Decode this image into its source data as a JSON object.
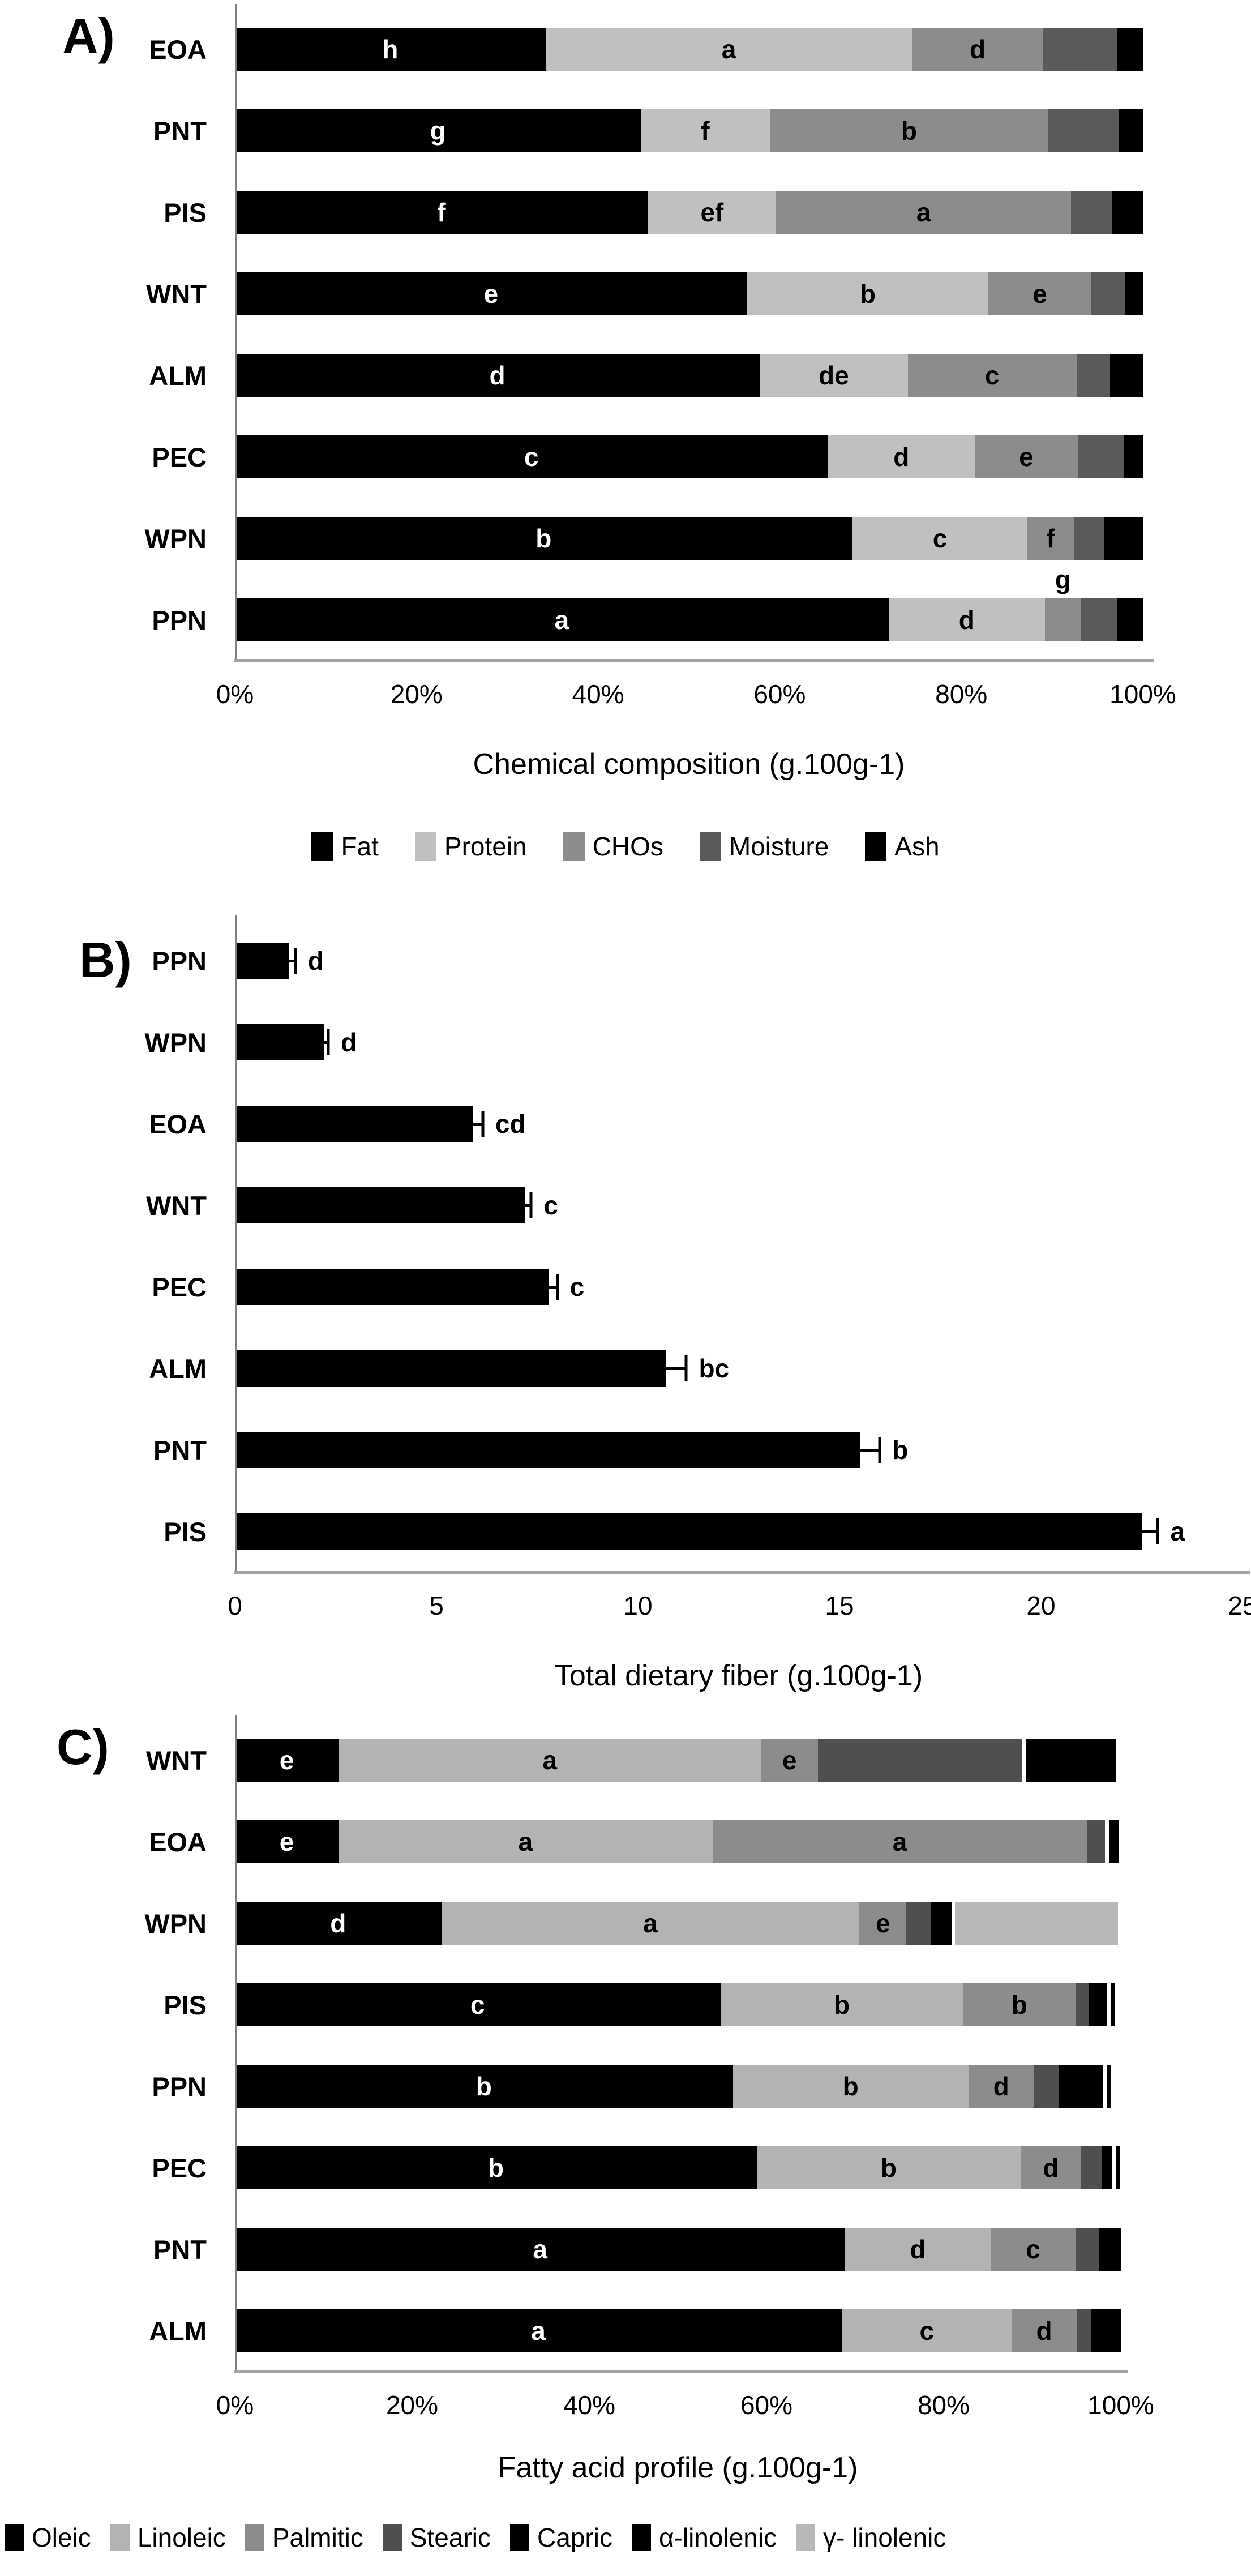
{
  "chart_data": [
    {
      "id": "A",
      "panel_label": "A)",
      "type": "stacked_bar_h",
      "xlabel": "Chemical composition (g.100g-1)",
      "xlim": [
        0,
        100
      ],
      "xticks": [
        "0%",
        "20%",
        "40%",
        "60%",
        "80%",
        "100%"
      ],
      "axis_color": "#a3a3a3",
      "legend_position": "bottom-center",
      "series": [
        {
          "name": "Fat",
          "color": "#000000"
        },
        {
          "name": "Protein",
          "color": "#c0c0c0"
        },
        {
          "name": "CHOs",
          "color": "#8c8c8c"
        },
        {
          "name": "Moisture",
          "color": "#5a5a5a"
        },
        {
          "name": "Ash",
          "color": "#000000"
        }
      ],
      "rows": [
        {
          "category": "EOA",
          "values": [
            34.2,
            40.4,
            14.4,
            8.2,
            2.8
          ],
          "letters": [
            {
              "seg": 0,
              "text": "h",
              "color": "#ffffff"
            },
            {
              "seg": 1,
              "text": "a",
              "color": "#000000"
            },
            {
              "seg": 2,
              "text": "d",
              "color": "#000000"
            }
          ]
        },
        {
          "category": "PNT",
          "values": [
            44.7,
            14.2,
            30.7,
            7.7,
            2.7
          ],
          "letters": [
            {
              "seg": 0,
              "text": "g",
              "color": "#ffffff"
            },
            {
              "seg": 1,
              "text": "f",
              "color": "#000000"
            },
            {
              "seg": 2,
              "text": "b",
              "color": "#000000"
            }
          ]
        },
        {
          "category": "PIS",
          "values": [
            45.5,
            14.1,
            32.5,
            4.5,
            3.4
          ],
          "letters": [
            {
              "seg": 0,
              "text": "f",
              "color": "#ffffff"
            },
            {
              "seg": 1,
              "text": "ef",
              "color": "#000000"
            },
            {
              "seg": 2,
              "text": "a",
              "color": "#000000"
            }
          ]
        },
        {
          "category": "WNT",
          "values": [
            56.4,
            26.6,
            11.3,
            3.7,
            2.0
          ],
          "letters": [
            {
              "seg": 0,
              "text": "e",
              "color": "#ffffff"
            },
            {
              "seg": 1,
              "text": "b",
              "color": "#000000"
            },
            {
              "seg": 2,
              "text": "e",
              "color": "#000000"
            }
          ]
        },
        {
          "category": "ALM",
          "values": [
            57.8,
            16.3,
            18.6,
            3.7,
            3.6
          ],
          "letters": [
            {
              "seg": 0,
              "text": "d",
              "color": "#ffffff"
            },
            {
              "seg": 1,
              "text": "de",
              "color": "#000000"
            },
            {
              "seg": 2,
              "text": "c",
              "color": "#000000"
            }
          ]
        },
        {
          "category": "PEC",
          "values": [
            65.3,
            16.2,
            11.3,
            5.1,
            2.1
          ],
          "letters": [
            {
              "seg": 0,
              "text": "c",
              "color": "#ffffff"
            },
            {
              "seg": 1,
              "text": "d",
              "color": "#000000"
            },
            {
              "seg": 2,
              "text": "e",
              "color": "#000000"
            }
          ]
        },
        {
          "category": "WPN",
          "values": [
            68.0,
            19.3,
            5.1,
            3.3,
            4.3
          ],
          "letters": [
            {
              "seg": 0,
              "text": "b",
              "color": "#ffffff"
            },
            {
              "seg": 1,
              "text": "c",
              "color": "#000000"
            },
            {
              "seg": 2,
              "text": "f",
              "color": "#000000"
            }
          ]
        },
        {
          "category": "PPN",
          "values": [
            72.0,
            17.2,
            4.0,
            4.0,
            2.8
          ],
          "letters": [
            {
              "seg": 0,
              "text": "a",
              "color": "#ffffff"
            },
            {
              "seg": 1,
              "text": "d",
              "color": "#000000"
            },
            {
              "seg": 2,
              "text": "g",
              "color": "#000000",
              "pos": "above"
            }
          ]
        }
      ]
    },
    {
      "id": "B",
      "panel_label": "B)",
      "type": "bar_h",
      "xlabel": "Total dietary fiber (g.100g-1)",
      "xlim": [
        0,
        25
      ],
      "xticks": [
        "0",
        "5",
        "10",
        "15",
        "20",
        "25"
      ],
      "axis_color": "#a3a3a3",
      "bar_color": "#000000",
      "rows": [
        {
          "category": "PPN",
          "value": 1.35,
          "error": 0.15,
          "letter": "d"
        },
        {
          "category": "WPN",
          "value": 2.2,
          "error": 0.12,
          "letter": "d"
        },
        {
          "category": "EOA",
          "value": 5.9,
          "error": 0.25,
          "letter": "cd"
        },
        {
          "category": "WNT",
          "value": 7.2,
          "error": 0.15,
          "letter": "c"
        },
        {
          "category": "PEC",
          "value": 7.8,
          "error": 0.2,
          "letter": "c"
        },
        {
          "category": "ALM",
          "value": 10.7,
          "error": 0.5,
          "letter": "bc"
        },
        {
          "category": "PNT",
          "value": 15.5,
          "error": 0.5,
          "letter": "b"
        },
        {
          "category": "PIS",
          "value": 22.5,
          "error": 0.4,
          "letter": "a"
        }
      ]
    },
    {
      "id": "C",
      "panel_label": "C)",
      "type": "stacked_bar_h",
      "xlabel": "Fatty acid profile (g.100g-1)",
      "xlim": [
        0,
        100
      ],
      "xticks": [
        "0%",
        "20%",
        "40%",
        "60%",
        "80%",
        "100%"
      ],
      "axis_color": "#a3a3a3",
      "legend_position": "bottom-left",
      "series": [
        {
          "name": "Oleic",
          "color": "#000000"
        },
        {
          "name": "Linoleic",
          "color": "#b3b3b3"
        },
        {
          "name": "Palmitic",
          "color": "#8c8c8c"
        },
        {
          "name": "Stearic",
          "color": "#4f4f4f"
        },
        {
          "name": "Capric",
          "color": "#000000"
        },
        {
          "name": "α-linolenic",
          "color": "#000000"
        },
        {
          "name": "γ- linolenic",
          "color": "#b8b8b8"
        }
      ],
      "rows": [
        {
          "category": "WNT",
          "values": [
            11.7,
            47.7,
            6.4,
            23.0,
            0,
            10.2,
            0
          ],
          "gaps": [
            {
              "before": 5,
              "w": 0.5
            }
          ],
          "letters": [
            {
              "seg": 0,
              "text": "e",
              "color": "#ffffff"
            },
            {
              "seg": 1,
              "text": "a",
              "color": "#000000"
            },
            {
              "seg": 2,
              "text": "e",
              "color": "#000000"
            }
          ]
        },
        {
          "category": "EOA",
          "values": [
            11.7,
            42.2,
            42.3,
            2.0,
            0,
            1.1,
            0
          ],
          "gaps": [
            {
              "before": 5,
              "w": 0.5
            }
          ],
          "letters": [
            {
              "seg": 0,
              "text": "e",
              "color": "#ffffff"
            },
            {
              "seg": 1,
              "text": "a",
              "color": "#000000"
            },
            {
              "seg": 2,
              "text": "a",
              "color": "#000000"
            }
          ]
        },
        {
          "category": "WPN",
          "values": [
            23.3,
            47.2,
            5.3,
            2.7,
            0,
            2.4,
            18.4
          ],
          "gaps": [
            {
              "before": 6,
              "w": 0.4
            }
          ],
          "letters": [
            {
              "seg": 0,
              "text": "d",
              "color": "#ffffff"
            },
            {
              "seg": 1,
              "text": "a",
              "color": "#000000"
            },
            {
              "seg": 2,
              "text": "e",
              "color": "#000000"
            }
          ]
        },
        {
          "category": "PIS",
          "values": [
            54.8,
            27.4,
            12.7,
            1.5,
            0,
            2.1,
            0
          ],
          "end_tick": true,
          "letters": [
            {
              "seg": 0,
              "text": "c",
              "color": "#ffffff"
            },
            {
              "seg": 1,
              "text": "b",
              "color": "#000000"
            },
            {
              "seg": 2,
              "text": "b",
              "color": "#000000"
            }
          ]
        },
        {
          "category": "PPN",
          "values": [
            56.2,
            26.6,
            7.4,
            2.8,
            0,
            5.0,
            0
          ],
          "end_tick": true,
          "letters": [
            {
              "seg": 0,
              "text": "b",
              "color": "#ffffff"
            },
            {
              "seg": 1,
              "text": "b",
              "color": "#000000"
            },
            {
              "seg": 2,
              "text": "d",
              "color": "#000000"
            }
          ]
        },
        {
          "category": "PEC",
          "values": [
            58.9,
            29.8,
            6.8,
            2.3,
            0,
            1.2,
            0
          ],
          "end_tick": true,
          "letters": [
            {
              "seg": 0,
              "text": "b",
              "color": "#ffffff"
            },
            {
              "seg": 1,
              "text": "b",
              "color": "#000000"
            },
            {
              "seg": 2,
              "text": "d",
              "color": "#000000"
            }
          ]
        },
        {
          "category": "PNT",
          "values": [
            68.9,
            16.4,
            9.6,
            2.7,
            0,
            2.4,
            0
          ],
          "letters": [
            {
              "seg": 0,
              "text": "a",
              "color": "#ffffff"
            },
            {
              "seg": 1,
              "text": "d",
              "color": "#000000"
            },
            {
              "seg": 2,
              "text": "c",
              "color": "#000000"
            }
          ]
        },
        {
          "category": "ALM",
          "values": [
            68.5,
            19.2,
            7.3,
            1.6,
            0,
            3.4,
            0
          ],
          "letters": [
            {
              "seg": 0,
              "text": "a",
              "color": "#ffffff"
            },
            {
              "seg": 1,
              "text": "c",
              "color": "#000000"
            },
            {
              "seg": 2,
              "text": "d",
              "color": "#000000"
            }
          ]
        }
      ]
    }
  ]
}
